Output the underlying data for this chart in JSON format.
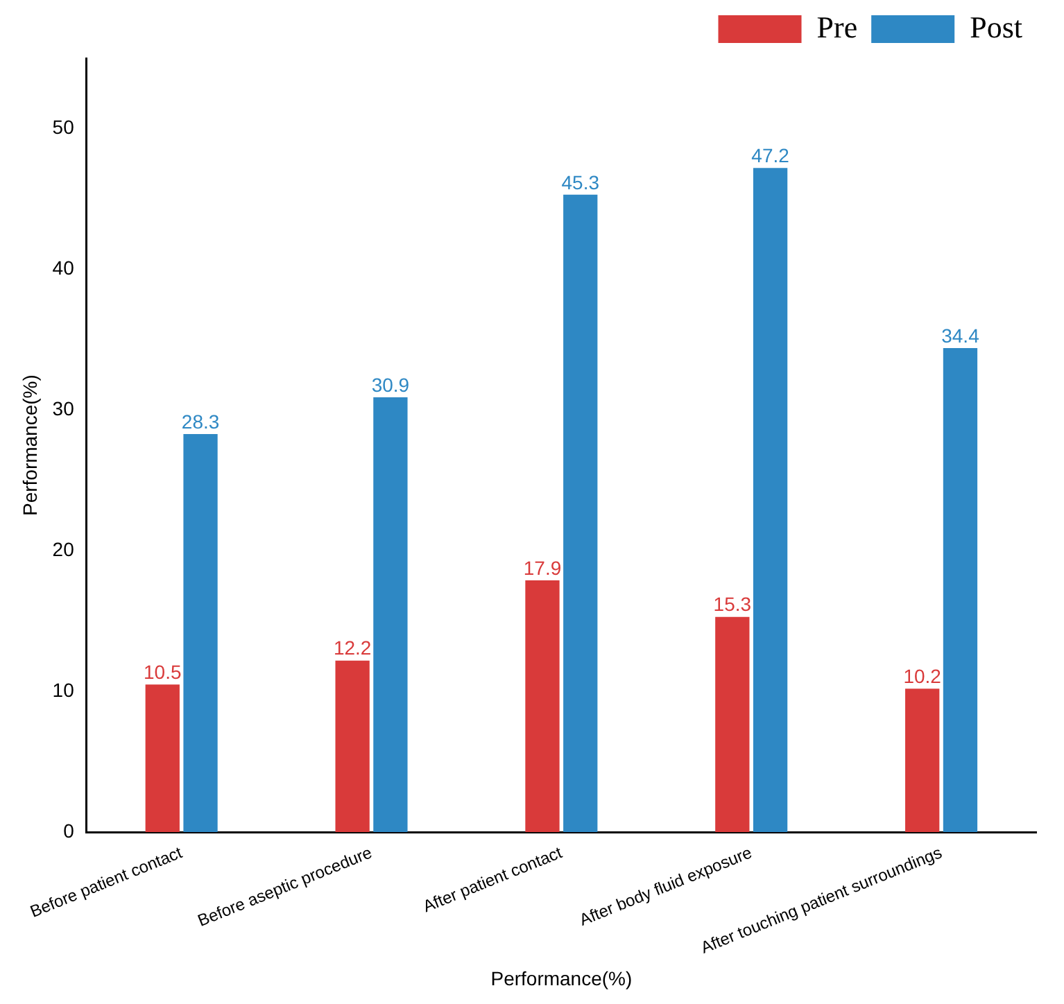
{
  "chart_data": {
    "type": "bar",
    "xlabel": "Performance(%)",
    "ylabel": "Performance(%)",
    "categories": [
      "Before patient contact",
      "Before aseptic procedure",
      "After patient contact",
      "After body fluid exposure",
      "After touching patient surroundings"
    ],
    "series": [
      {
        "name": "Pre",
        "color": "#d93a3a",
        "values": [
          10.5,
          12.2,
          17.9,
          15.3,
          10.2
        ]
      },
      {
        "name": "Post",
        "color": "#2e88c4",
        "values": [
          28.3,
          30.9,
          45.3,
          47.2,
          34.4
        ]
      }
    ],
    "ylim": [
      0,
      55
    ],
    "yticks": [
      0,
      10,
      20,
      30,
      40,
      50
    ],
    "grid": false,
    "legend": "top right",
    "data_labels": true
  }
}
